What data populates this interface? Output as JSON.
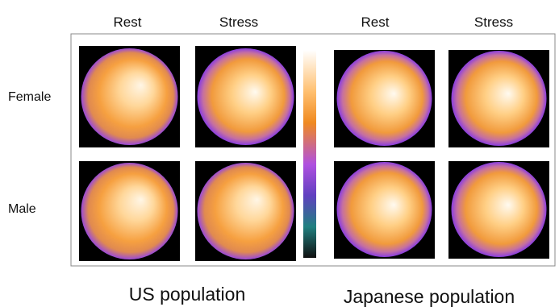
{
  "header": {
    "columns": [
      "Rest",
      "Stress",
      "Rest",
      "Stress"
    ]
  },
  "rows": [
    "Female",
    "Male"
  ],
  "groups": [
    "US population",
    "Japanese population"
  ]
}
